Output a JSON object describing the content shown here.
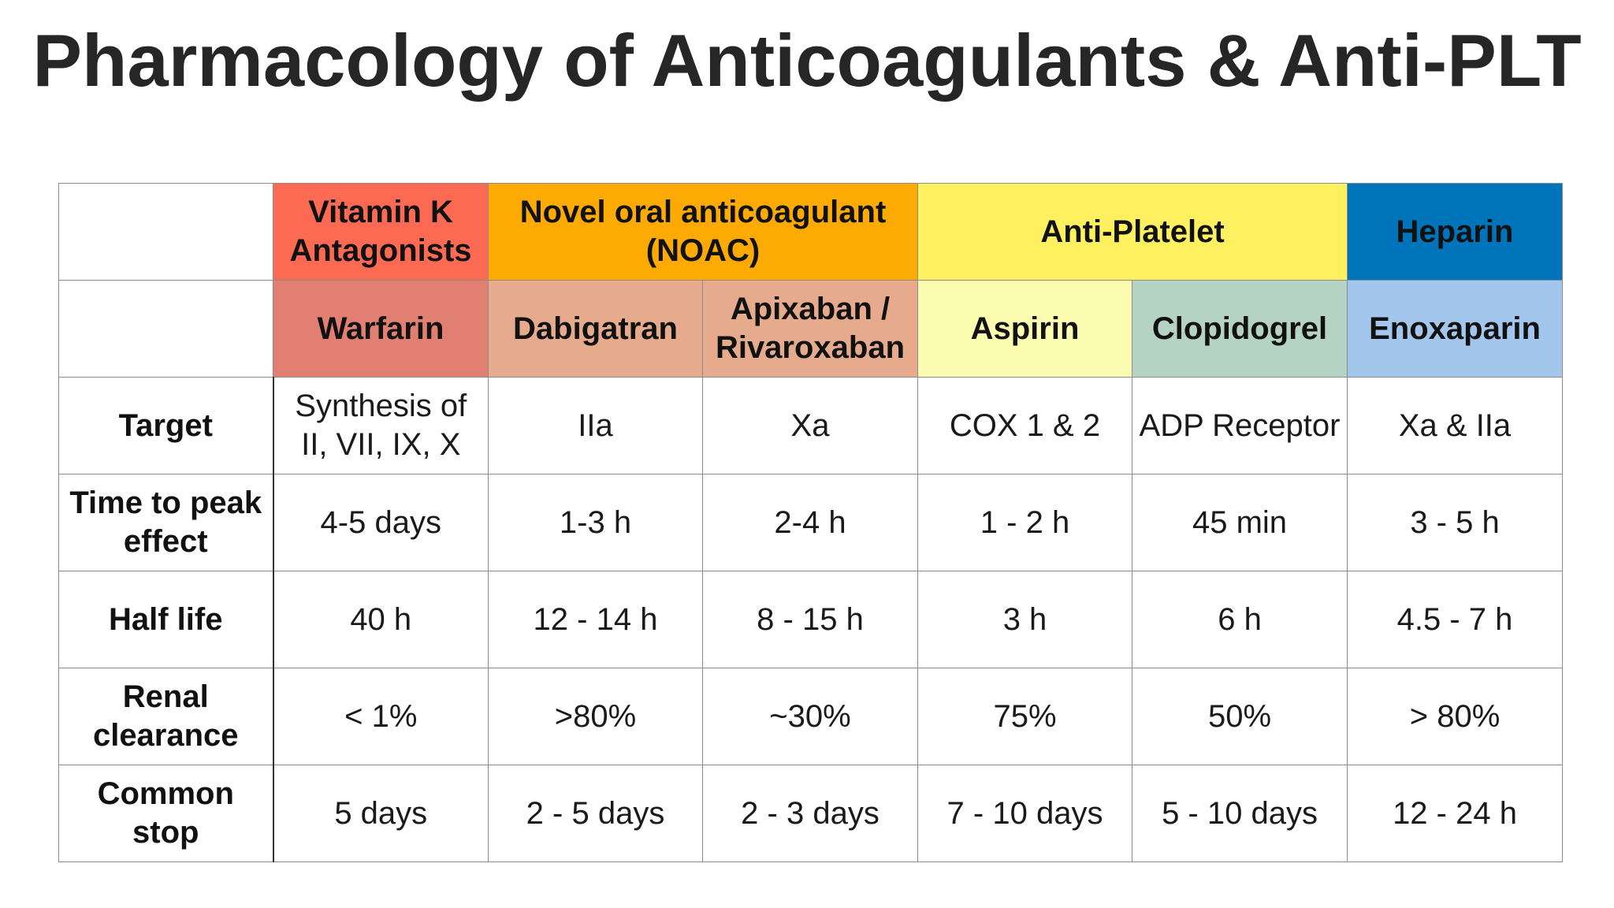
{
  "title": "Pharmacology of Anticoagulants & Anti-PLT",
  "groups": [
    {
      "label_line1": "Vitamin K",
      "label_line2": "Antagonists",
      "color": "#fc6a53"
    },
    {
      "label_line1": "Novel oral anticoagulant",
      "label_line2": "(NOAC)",
      "color": "#fdab02"
    },
    {
      "label": "Anti-Platelet",
      "color": "#fef05e"
    },
    {
      "label": "Heparin",
      "color": "#0074bb"
    }
  ],
  "drugs": [
    {
      "name": "Warfarin",
      "color": "#e17f72"
    },
    {
      "name": "Dabigatran",
      "color": "#e6ab8c"
    },
    {
      "name_line1": "Apixaban /",
      "name_line2": "Rivaroxaban",
      "color": "#e6ab8c"
    },
    {
      "name": "Aspirin",
      "color": "#fcfcb0"
    },
    {
      "name": "Clopidogrel",
      "color": "#b5d3c2"
    },
    {
      "name": "Enoxaparin",
      "color": "#a2c6ec"
    }
  ],
  "rows": [
    {
      "label": "Target",
      "values": [
        "",
        "IIa",
        "Xa",
        "COX 1 & 2",
        "ADP Receptor",
        "Xa & IIa"
      ],
      "warfarin_line1": "Synthesis of",
      "warfarin_line2": "II, VII, IX, X"
    },
    {
      "label_line1": "Time to peak",
      "label_line2": "effect",
      "values": [
        "4-5 days",
        "1-3 h",
        "2-4 h",
        "1 - 2 h",
        "45 min",
        "3 - 5 h"
      ]
    },
    {
      "label": "Half life",
      "values": [
        "40 h",
        "12 - 14 h",
        "8 - 15 h",
        "3 h",
        "6 h",
        "4.5 - 7 h"
      ]
    },
    {
      "label_line1": "Renal",
      "label_line2": "clearance",
      "values": [
        "< 1%",
        ">80%",
        "~30%",
        "75%",
        "50%",
        "> 80%"
      ]
    },
    {
      "label_line1": "Common",
      "label_line2": "stop",
      "values": [
        "5 days",
        "2 - 5 days",
        "2 - 3 days",
        "7 - 10 days",
        "5 - 10 days",
        "12 - 24 h"
      ]
    }
  ]
}
